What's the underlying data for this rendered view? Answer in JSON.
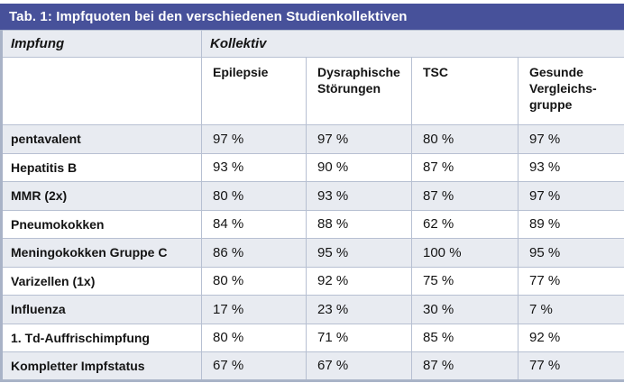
{
  "title_bar": {
    "text": "Tab. 1: Impfquoten bei den verschiedenen Studienkollektiven"
  },
  "header": {
    "row_dimension_label": "Impfung",
    "column_dimension_label": "Kollektiv"
  },
  "columns": [
    "Epilepsie",
    "Dysraphische Störungen",
    "TSC",
    "Gesunde Vergleichs-gruppe"
  ],
  "rows": [
    {
      "label": "pentavalent",
      "values": [
        "97 %",
        "97 %",
        "80 %",
        "97 %"
      ]
    },
    {
      "label": "Hepatitis B",
      "values": [
        "93 %",
        "90 %",
        "87 %",
        "93 %"
      ]
    },
    {
      "label": "MMR (2x)",
      "values": [
        "80 %",
        "93 %",
        "87 %",
        "97 %"
      ]
    },
    {
      "label": "Pneumokokken",
      "values": [
        "84 %",
        "88 %",
        "62 %",
        "89 %"
      ]
    },
    {
      "label": "Meningokokken Gruppe C",
      "values": [
        "86 %",
        "95 %",
        "100 %",
        "95 %"
      ]
    },
    {
      "label": "Varizellen (1x)",
      "values": [
        "80 %",
        "92 %",
        "75 %",
        "77 %"
      ]
    },
    {
      "label": "Influenza",
      "values": [
        "17 %",
        "23 %",
        "30 %",
        "7 %"
      ]
    },
    {
      "label": "1. Td-Auffrischimpfung",
      "values": [
        "80 %",
        "71 %",
        "85 %",
        "92 %"
      ]
    },
    {
      "label": "Kompletter Impfstatus",
      "values": [
        "67 %",
        "67 %",
        "87 %",
        "77 %"
      ]
    }
  ],
  "colors": {
    "header_blue": "#47519a",
    "title_text": "#ffffff",
    "row_stripe": "#e8ebf1",
    "inner_border": "#b7c0d2",
    "outer_border": "#a9b3c7",
    "body_text": "#141414"
  },
  "chart_data": {
    "type": "table",
    "title": "Tab. 1: Impfquoten bei den verschiedenen Studienkollektiven",
    "row_dimension": "Impfung",
    "column_dimension": "Kollektiv",
    "unit": "%",
    "categories": [
      "pentavalent",
      "Hepatitis B",
      "MMR (2x)",
      "Pneumokokken",
      "Meningokokken Gruppe C",
      "Varizellen (1x)",
      "Influenza",
      "1. Td-Auffrischimpfung",
      "Kompletter Impfstatus"
    ],
    "series": [
      {
        "name": "Epilepsie",
        "values": [
          97,
          93,
          80,
          84,
          86,
          80,
          17,
          80,
          67
        ]
      },
      {
        "name": "Dysraphische Störungen",
        "values": [
          97,
          90,
          93,
          88,
          95,
          92,
          23,
          71,
          67
        ]
      },
      {
        "name": "TSC",
        "values": [
          80,
          87,
          87,
          62,
          100,
          75,
          30,
          85,
          87
        ]
      },
      {
        "name": "Gesunde Vergleichsgruppe",
        "values": [
          97,
          93,
          97,
          89,
          95,
          77,
          7,
          92,
          77
        ]
      }
    ]
  }
}
